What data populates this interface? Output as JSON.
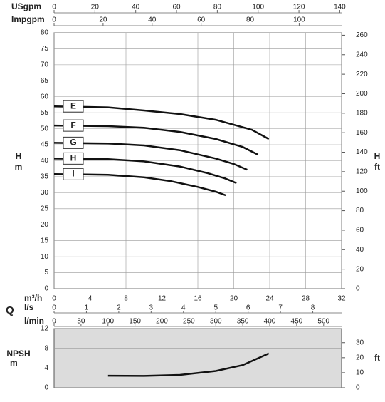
{
  "chart_data": [
    {
      "type": "line",
      "y_label": "H",
      "y_unit": "m",
      "y2_label": "H",
      "y2_unit": "ft",
      "ylim": [
        0,
        80
      ],
      "yticks": [
        0,
        5,
        10,
        15,
        20,
        25,
        30,
        35,
        40,
        45,
        50,
        55,
        60,
        65,
        70,
        75,
        80
      ],
      "y2lim": [
        0,
        262.5
      ],
      "y2ticks": [
        0,
        20,
        40,
        60,
        80,
        100,
        120,
        140,
        160,
        180,
        200,
        220,
        240,
        260
      ],
      "x_label": "m³/h",
      "flow_label": "Q",
      "xlim": [
        0,
        32
      ],
      "xticks": [
        0,
        4,
        8,
        12,
        16,
        20,
        24,
        28,
        32
      ],
      "top_axes": [
        {
          "label": "USgpm",
          "xlim": [
            0,
            140.9
          ],
          "xticks": [
            0,
            20,
            40,
            60,
            80,
            100,
            120,
            140
          ]
        },
        {
          "label": "Impgpm",
          "xlim": [
            0,
            117.3
          ],
          "xticks": [
            0,
            20,
            40,
            60,
            80,
            100
          ]
        }
      ],
      "bottom_axes": [
        {
          "label": "l/s",
          "xlim": [
            0,
            8.89
          ],
          "xticks": [
            0,
            1,
            2,
            3,
            4,
            5,
            6,
            7,
            8
          ]
        },
        {
          "label": "l/min",
          "xlim": [
            0,
            533.3
          ],
          "xticks": [
            0,
            50,
            100,
            150,
            200,
            250,
            300,
            350,
            400,
            450,
            500
          ]
        }
      ],
      "grid": true,
      "series": [
        {
          "name": "E",
          "color": "#111111",
          "x": [
            0,
            6,
            10,
            14,
            18,
            22,
            23.9
          ],
          "values": [
            57,
            56.7,
            55.7,
            54.6,
            52.8,
            49.7,
            46.8
          ]
        },
        {
          "name": "F",
          "color": "#111111",
          "x": [
            0,
            6,
            10,
            14,
            18,
            21,
            22.7
          ],
          "values": [
            51,
            50.8,
            50.3,
            49,
            46.8,
            44.3,
            41.9
          ]
        },
        {
          "name": "G",
          "color": "#111111",
          "x": [
            0,
            6,
            10,
            14,
            18,
            20,
            21.5
          ],
          "values": [
            45.6,
            45.4,
            44.8,
            43.3,
            40.7,
            39,
            37.2
          ]
        },
        {
          "name": "H",
          "color": "#111111",
          "x": [
            0,
            6,
            10,
            14,
            17,
            19,
            20.3
          ],
          "values": [
            40.7,
            40.5,
            39.8,
            38.2,
            36.2,
            34.5,
            33
          ]
        },
        {
          "name": "I",
          "color": "#111111",
          "x": [
            0,
            6,
            10,
            13,
            16,
            18,
            19.1
          ],
          "values": [
            35.8,
            35.6,
            34.8,
            33.6,
            31.8,
            30.3,
            29.2
          ]
        }
      ]
    },
    {
      "type": "line",
      "y_label": "NPSH",
      "y_unit": "m",
      "y2_label": "ft",
      "ylim": [
        0,
        12
      ],
      "yticks": [
        0,
        4,
        8,
        12
      ],
      "y2lim": [
        0,
        39.37
      ],
      "y2ticks": [
        0,
        10,
        20,
        30
      ],
      "xlim": [
        0,
        32
      ],
      "grid": true,
      "series": [
        {
          "color": "#111111",
          "x": [
            6,
            10,
            14,
            18,
            21,
            23.9
          ],
          "values": [
            2.45,
            2.4,
            2.6,
            3.4,
            4.6,
            6.95
          ]
        }
      ]
    }
  ]
}
